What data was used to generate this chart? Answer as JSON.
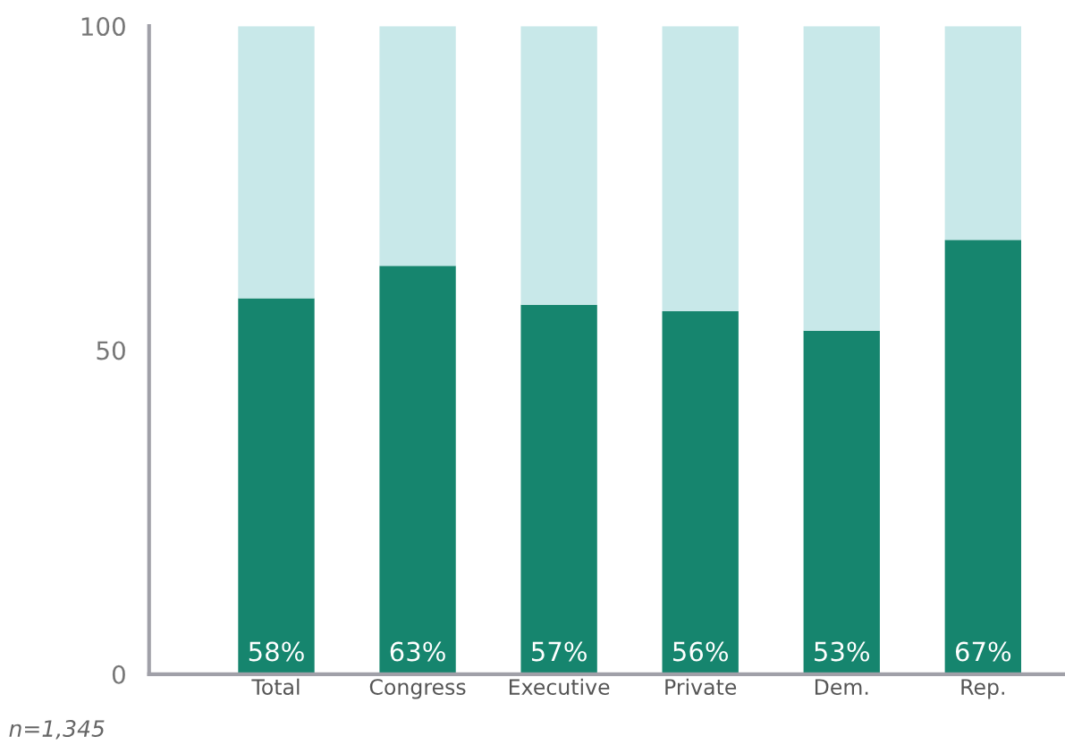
{
  "chart_data": {
    "type": "bar",
    "stacked": true,
    "categories": [
      "Total",
      "Congress",
      "Executive",
      "Private",
      "Dem.",
      "Rep."
    ],
    "series": [
      {
        "color": "#16856e",
        "values": [
          58,
          63,
          57,
          56,
          53,
          67
        ],
        "value_labels": [
          "58%",
          "63%",
          "57%",
          "56%",
          "53%",
          "67%"
        ]
      },
      {
        "color": "#c8e8e9",
        "values": [
          42,
          37,
          43,
          44,
          47,
          33
        ]
      }
    ],
    "ylim": [
      0,
      100
    ],
    "yticks": [
      0,
      50,
      100
    ],
    "grid": false,
    "legend": false,
    "annotations": [
      "n=1,345"
    ]
  }
}
